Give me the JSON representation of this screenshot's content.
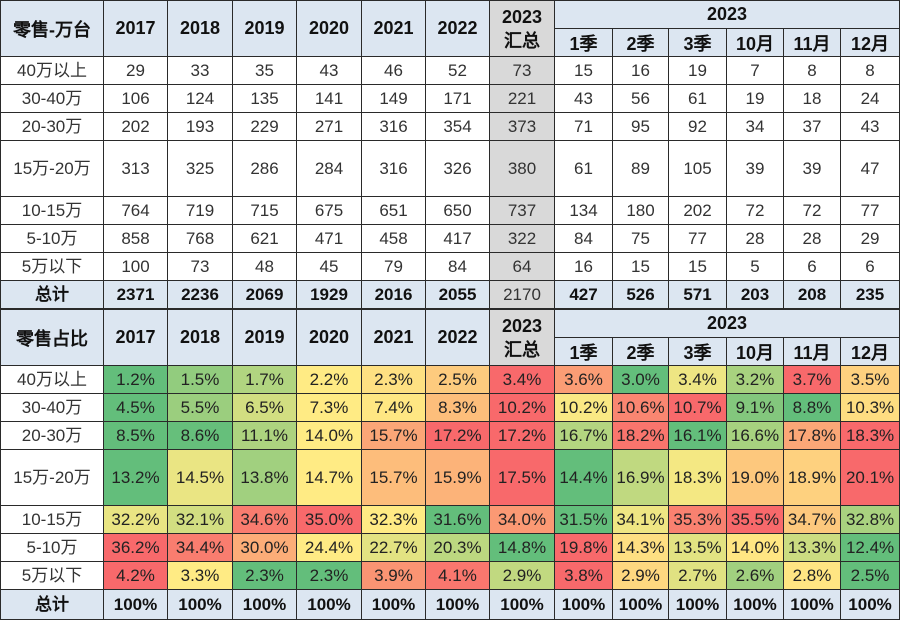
{
  "columns": {
    "years": [
      "2017",
      "2018",
      "2019",
      "2020",
      "2021",
      "2022"
    ],
    "summary": [
      "2023",
      "汇总"
    ],
    "group_title": "2023",
    "periods": [
      "1季",
      "2季",
      "3季",
      "10月",
      "11月",
      "12月"
    ]
  },
  "row_labels": [
    "40万以上",
    "30-40万",
    "20-30万",
    "15万-20万",
    "10-15万",
    "5-10万",
    "5万以下"
  ],
  "total_label": "总计",
  "heat_colors": {
    "low": "#63be7b",
    "mid": "#ffeb84",
    "high": "#f8696b"
  },
  "volume_table": {
    "title": "零售-万台",
    "rows": [
      {
        "years": [
          "29",
          "33",
          "35",
          "43",
          "46",
          "52"
        ],
        "summary": "73",
        "periods": [
          "15",
          "16",
          "19",
          "7",
          "8",
          "8"
        ]
      },
      {
        "years": [
          "106",
          "124",
          "135",
          "141",
          "149",
          "171"
        ],
        "summary": "221",
        "periods": [
          "43",
          "56",
          "61",
          "19",
          "18",
          "24"
        ]
      },
      {
        "years": [
          "202",
          "193",
          "229",
          "271",
          "316",
          "354"
        ],
        "summary": "373",
        "periods": [
          "71",
          "95",
          "92",
          "34",
          "37",
          "43"
        ]
      },
      {
        "years": [
          "313",
          "325",
          "286",
          "284",
          "316",
          "326"
        ],
        "summary": "380",
        "periods": [
          "61",
          "89",
          "105",
          "39",
          "39",
          "47"
        ]
      },
      {
        "years": [
          "764",
          "719",
          "715",
          "675",
          "651",
          "650"
        ],
        "summary": "737",
        "periods": [
          "134",
          "180",
          "202",
          "72",
          "72",
          "77"
        ]
      },
      {
        "years": [
          "858",
          "768",
          "621",
          "471",
          "458",
          "417"
        ],
        "summary": "322",
        "periods": [
          "84",
          "75",
          "77",
          "28",
          "28",
          "29"
        ]
      },
      {
        "years": [
          "100",
          "73",
          "48",
          "45",
          "79",
          "84"
        ],
        "summary": "64",
        "periods": [
          "16",
          "15",
          "15",
          "5",
          "6",
          "6"
        ]
      }
    ],
    "total": {
      "years": [
        "2371",
        "2236",
        "2069",
        "1929",
        "2016",
        "2055"
      ],
      "summary": "2170",
      "periods": [
        "427",
        "526",
        "571",
        "203",
        "208",
        "235"
      ]
    }
  },
  "share_table": {
    "title": "零售占比",
    "rows": [
      {
        "years": [
          "1.2%",
          "1.5%",
          "1.7%",
          "2.2%",
          "2.3%",
          "2.5%"
        ],
        "summary": "3.4%",
        "periods": [
          "3.6%",
          "3.0%",
          "3.4%",
          "3.2%",
          "3.7%",
          "3.5%"
        ]
      },
      {
        "years": [
          "4.5%",
          "5.5%",
          "6.5%",
          "7.3%",
          "7.4%",
          "8.3%"
        ],
        "summary": "10.2%",
        "periods": [
          "10.2%",
          "10.6%",
          "10.7%",
          "9.1%",
          "8.8%",
          "10.3%"
        ]
      },
      {
        "years": [
          "8.5%",
          "8.6%",
          "11.1%",
          "14.0%",
          "15.7%",
          "17.2%"
        ],
        "summary": "17.2%",
        "periods": [
          "16.7%",
          "18.2%",
          "16.1%",
          "16.6%",
          "17.8%",
          "18.3%"
        ]
      },
      {
        "years": [
          "13.2%",
          "14.5%",
          "13.8%",
          "14.7%",
          "15.7%",
          "15.9%"
        ],
        "summary": "17.5%",
        "periods": [
          "14.4%",
          "16.9%",
          "18.3%",
          "19.0%",
          "18.9%",
          "20.1%"
        ]
      },
      {
        "years": [
          "32.2%",
          "32.1%",
          "34.6%",
          "35.0%",
          "32.3%",
          "31.6%"
        ],
        "summary": "34.0%",
        "periods": [
          "31.5%",
          "34.1%",
          "35.3%",
          "35.5%",
          "34.7%",
          "32.8%"
        ]
      },
      {
        "years": [
          "36.2%",
          "34.4%",
          "30.0%",
          "24.4%",
          "22.7%",
          "20.3%"
        ],
        "summary": "14.8%",
        "periods": [
          "19.8%",
          "14.3%",
          "13.5%",
          "14.0%",
          "13.3%",
          "12.4%"
        ]
      },
      {
        "years": [
          "4.2%",
          "3.3%",
          "2.3%",
          "2.3%",
          "3.9%",
          "4.1%"
        ],
        "summary": "2.9%",
        "periods": [
          "3.8%",
          "2.9%",
          "2.7%",
          "2.6%",
          "2.8%",
          "2.5%"
        ]
      }
    ],
    "total": {
      "years": [
        "100%",
        "100%",
        "100%",
        "100%",
        "100%",
        "100%"
      ],
      "summary": "100%",
      "periods": [
        "100%",
        "100%",
        "100%",
        "100%",
        "100%",
        "100%"
      ]
    }
  }
}
